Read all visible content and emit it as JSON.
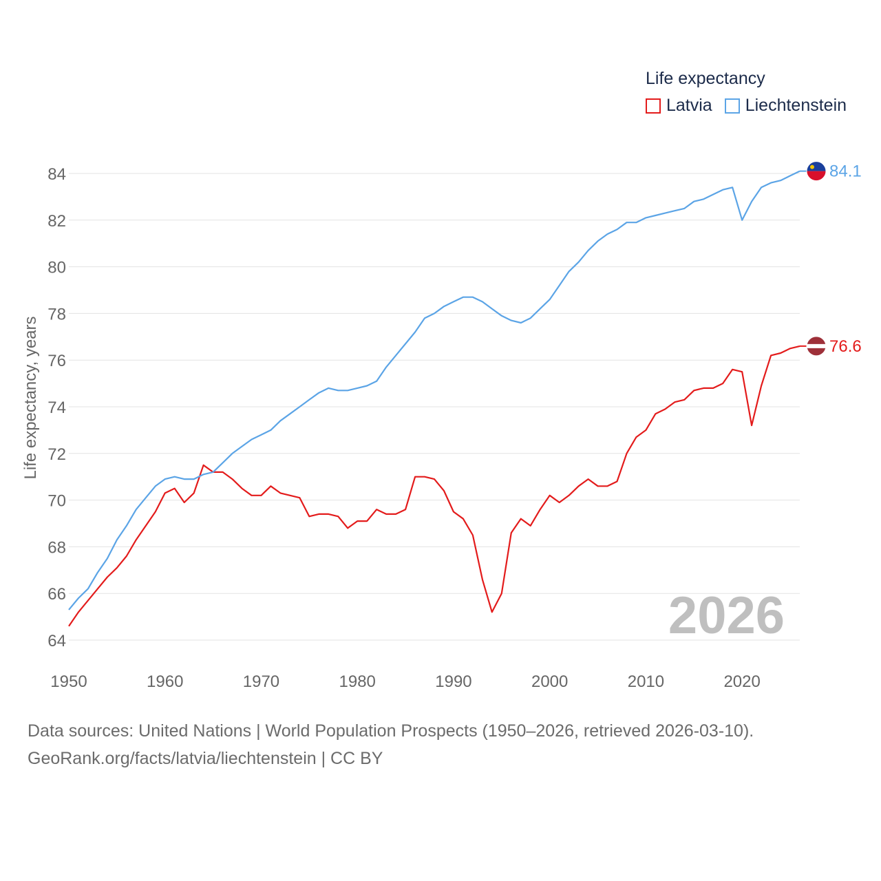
{
  "chart_data": {
    "type": "line",
    "ylabel": "Life expectancy, years",
    "xlabel": "",
    "xlim": [
      1950,
      2026
    ],
    "ylim": [
      64,
      84
    ],
    "yticks": [
      64,
      66,
      68,
      70,
      72,
      74,
      76,
      78,
      80,
      82,
      84
    ],
    "xticks": [
      1950,
      1960,
      1970,
      1980,
      1990,
      2000,
      2010,
      2020
    ],
    "year_watermark": "2026",
    "legend": {
      "title": "Life expectancy",
      "position": "top-right"
    },
    "series": [
      {
        "name": "Latvia",
        "color": "#e31b1b",
        "end_label": "76.6",
        "flag": "latvia-flag",
        "x": [
          1950,
          1951,
          1952,
          1953,
          1954,
          1955,
          1956,
          1957,
          1958,
          1959,
          1960,
          1961,
          1962,
          1963,
          1964,
          1965,
          1966,
          1967,
          1968,
          1969,
          1970,
          1971,
          1972,
          1973,
          1974,
          1975,
          1976,
          1977,
          1978,
          1979,
          1980,
          1981,
          1982,
          1983,
          1984,
          1985,
          1986,
          1987,
          1988,
          1989,
          1990,
          1991,
          1992,
          1993,
          1994,
          1995,
          1996,
          1997,
          1998,
          1999,
          2000,
          2001,
          2002,
          2003,
          2004,
          2005,
          2006,
          2007,
          2008,
          2009,
          2010,
          2011,
          2012,
          2013,
          2014,
          2015,
          2016,
          2017,
          2018,
          2019,
          2020,
          2021,
          2022,
          2023,
          2024,
          2025,
          2026
        ],
        "values": [
          64.6,
          65.2,
          65.7,
          66.2,
          66.7,
          67.1,
          67.6,
          68.3,
          68.9,
          69.5,
          70.3,
          70.5,
          69.9,
          70.3,
          71.5,
          71.2,
          71.2,
          70.9,
          70.5,
          70.2,
          70.2,
          70.6,
          70.3,
          70.2,
          70.1,
          69.3,
          69.4,
          69.4,
          69.3,
          68.8,
          69.1,
          69.1,
          69.6,
          69.4,
          69.4,
          69.6,
          71.0,
          71.0,
          70.9,
          70.4,
          69.5,
          69.2,
          68.5,
          66.6,
          65.2,
          66.0,
          68.6,
          69.2,
          68.9,
          69.6,
          70.2,
          69.9,
          70.2,
          70.6,
          70.9,
          70.6,
          70.6,
          70.8,
          72.0,
          72.7,
          73.0,
          73.7,
          73.9,
          74.2,
          74.3,
          74.7,
          74.8,
          74.8,
          75.0,
          75.6,
          75.5,
          73.2,
          74.9,
          76.2,
          76.3,
          76.5,
          76.6
        ]
      },
      {
        "name": "Liechtenstein",
        "color": "#5ba4e6",
        "end_label": "84.1",
        "flag": "liechtenstein-flag",
        "x": [
          1950,
          1951,
          1952,
          1953,
          1954,
          1955,
          1956,
          1957,
          1958,
          1959,
          1960,
          1961,
          1962,
          1963,
          1964,
          1965,
          1966,
          1967,
          1968,
          1969,
          1970,
          1971,
          1972,
          1973,
          1974,
          1975,
          1976,
          1977,
          1978,
          1979,
          1980,
          1981,
          1982,
          1983,
          1984,
          1985,
          1986,
          1987,
          1988,
          1989,
          1990,
          1991,
          1992,
          1993,
          1994,
          1995,
          1996,
          1997,
          1998,
          1999,
          2000,
          2001,
          2002,
          2003,
          2004,
          2005,
          2006,
          2007,
          2008,
          2009,
          2010,
          2011,
          2012,
          2013,
          2014,
          2015,
          2016,
          2017,
          2018,
          2019,
          2020,
          2021,
          2022,
          2023,
          2024,
          2025,
          2026
        ],
        "values": [
          65.3,
          65.8,
          66.2,
          66.9,
          67.5,
          68.3,
          68.9,
          69.6,
          70.1,
          70.6,
          70.9,
          71.0,
          70.9,
          70.9,
          71.1,
          71.2,
          71.6,
          72.0,
          72.3,
          72.6,
          72.8,
          73.0,
          73.4,
          73.7,
          74.0,
          74.3,
          74.6,
          74.8,
          74.7,
          74.7,
          74.8,
          74.9,
          75.1,
          75.7,
          76.2,
          76.7,
          77.2,
          77.8,
          78.0,
          78.3,
          78.5,
          78.7,
          78.7,
          78.5,
          78.2,
          77.9,
          77.7,
          77.6,
          77.8,
          78.2,
          78.6,
          79.2,
          79.8,
          80.2,
          80.7,
          81.1,
          81.4,
          81.6,
          81.9,
          81.9,
          82.1,
          82.2,
          82.3,
          82.4,
          82.5,
          82.8,
          82.9,
          83.1,
          83.3,
          83.4,
          82.0,
          82.8,
          83.4,
          83.6,
          83.7,
          83.9,
          84.1
        ]
      }
    ]
  },
  "sources": {
    "line1": "Data sources: United Nations | World Population Prospects (1950–2026, retrieved 2026-03-10).",
    "line2": "GeoRank.org/facts/latvia/liechtenstein | CC BY"
  }
}
